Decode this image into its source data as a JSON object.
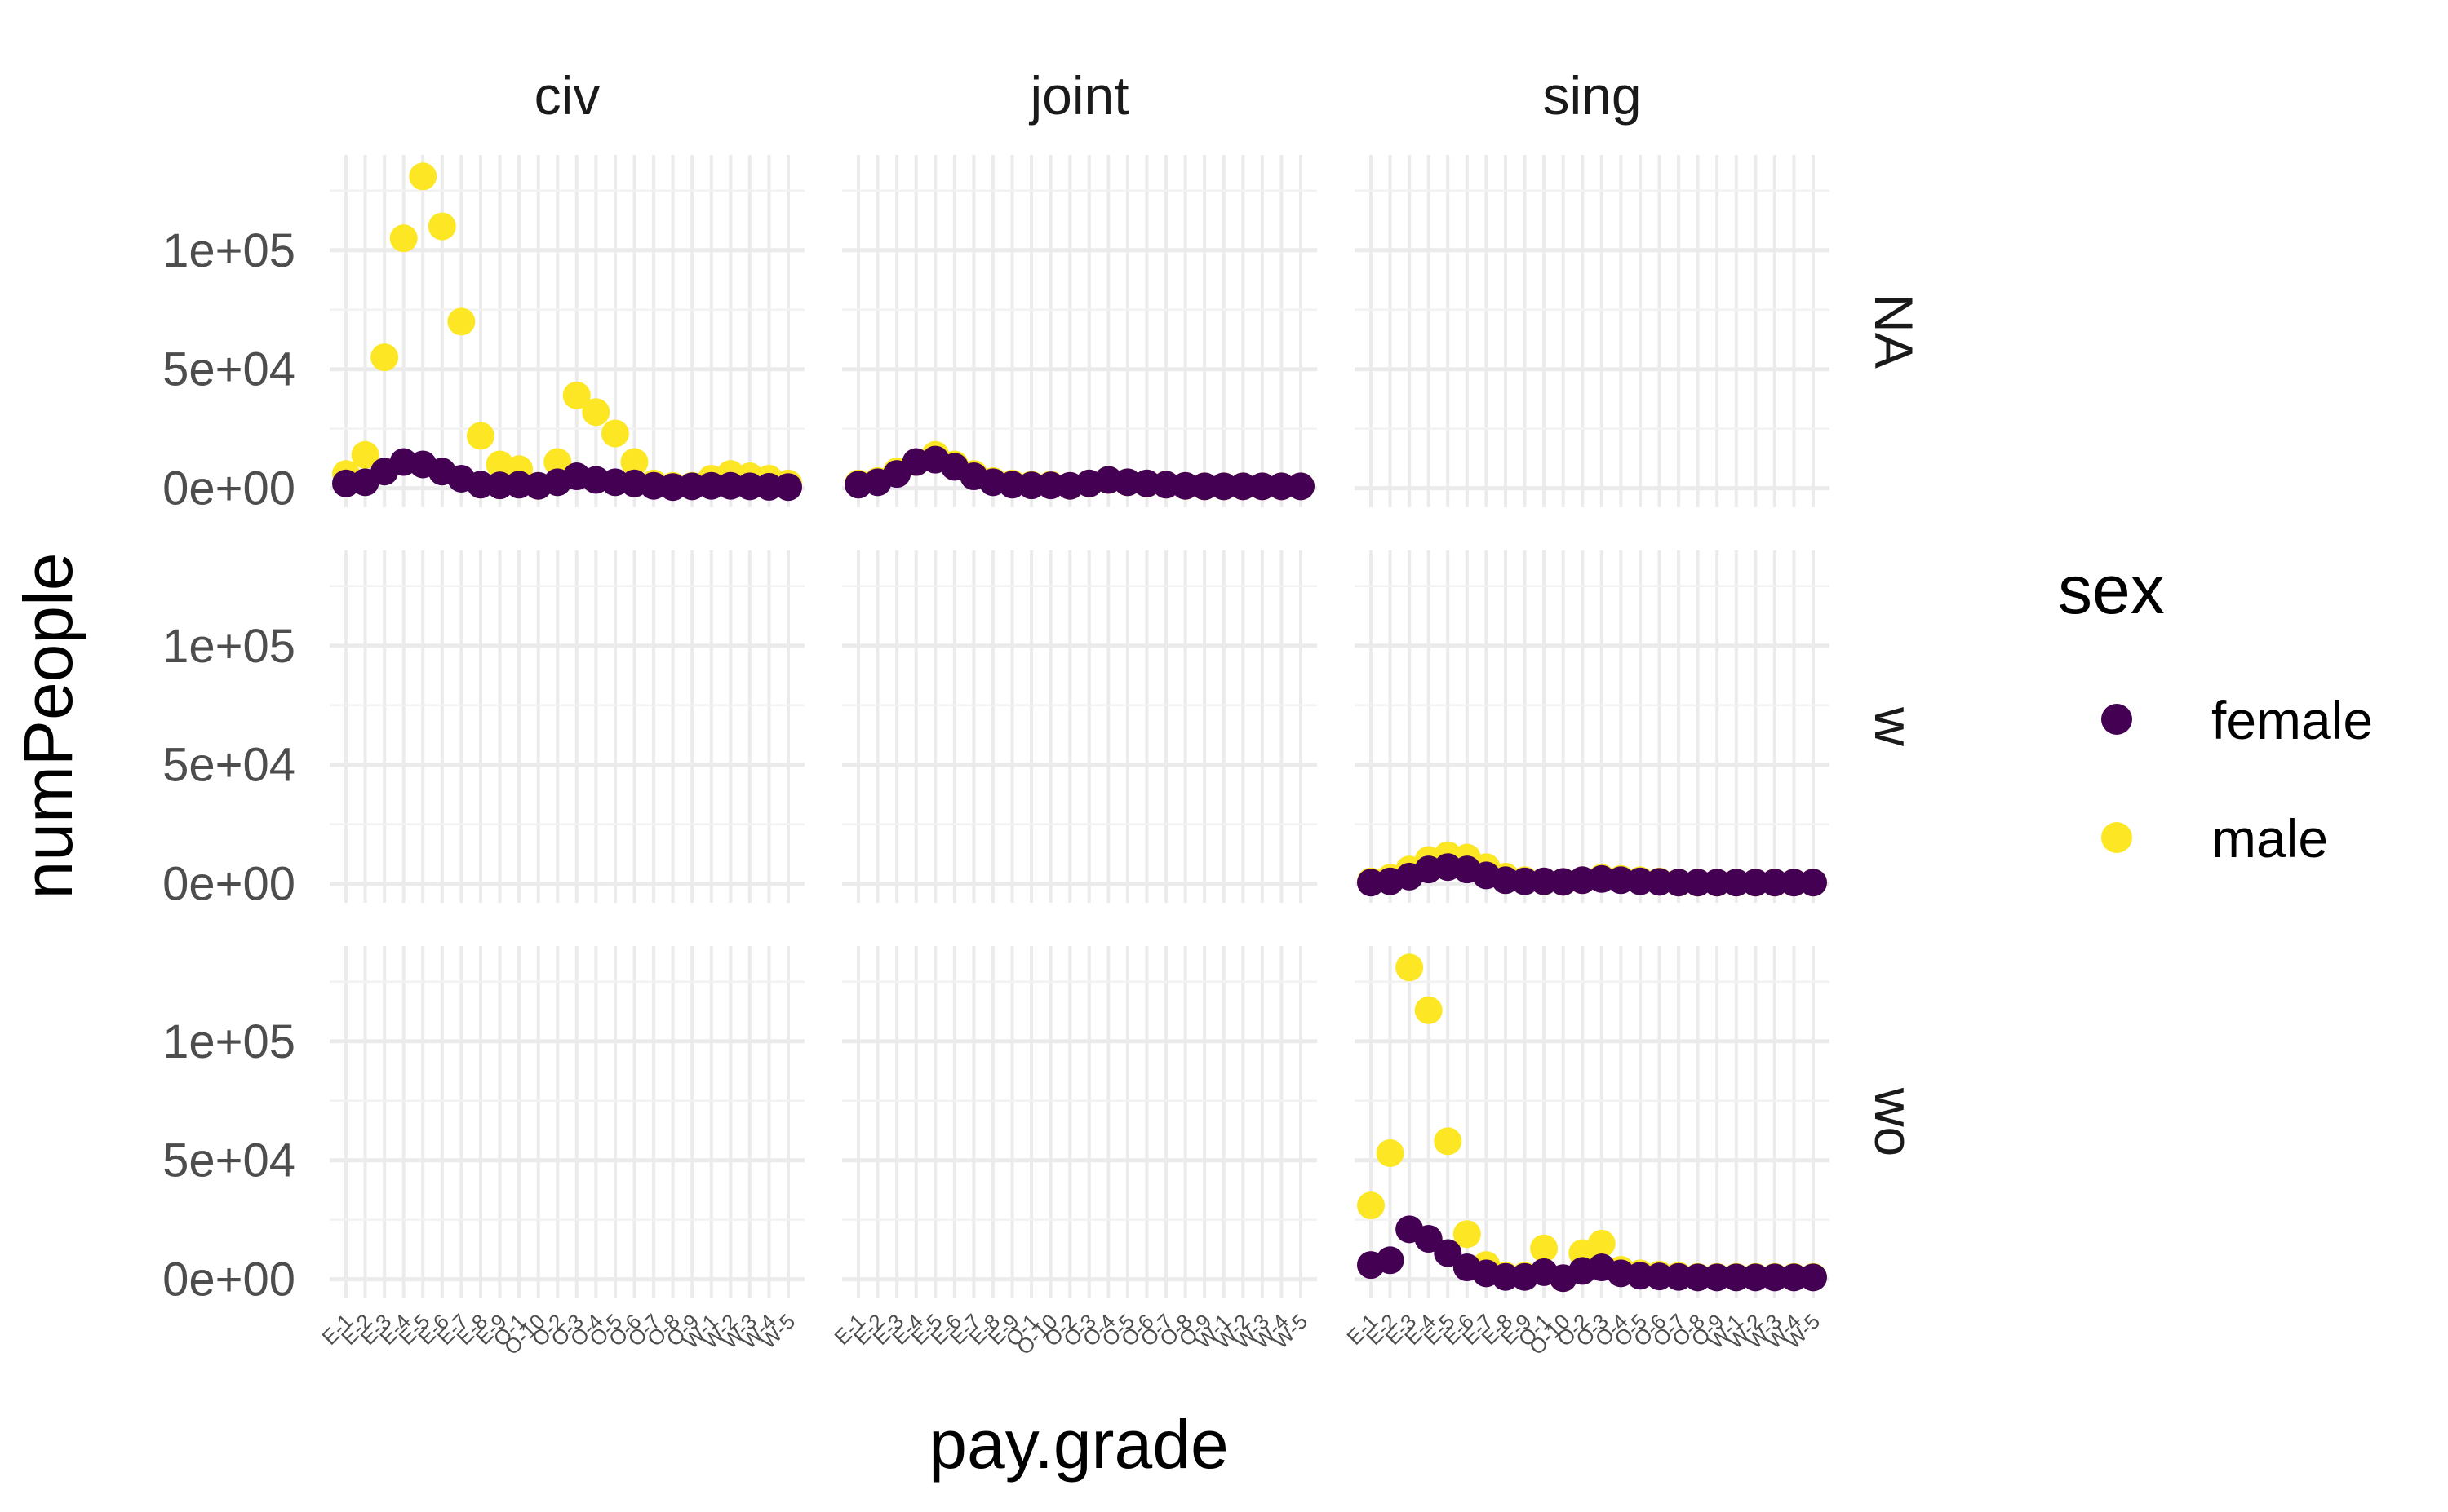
{
  "chart_data": {
    "type": "scatter",
    "x_label": "pay.grade",
    "y_label": "numPeople",
    "y_range": [
      -8000,
      140000
    ],
    "y_ticks": [
      {
        "value": 0,
        "label": "0e+00"
      },
      {
        "value": 50000,
        "label": "5e+04"
      },
      {
        "value": 100000,
        "label": "1e+05"
      }
    ],
    "grid": true,
    "legend": {
      "title": "sex",
      "position": "right",
      "entries": [
        {
          "name": "female",
          "color": "#440154"
        },
        {
          "name": "male",
          "color": "#FDE725"
        }
      ]
    },
    "columns": [
      "civ",
      "joint",
      "sing"
    ],
    "rows": [
      "NA",
      "w",
      "wo"
    ],
    "x_categories": [
      "E-1",
      "E-2",
      "E-3",
      "E-4",
      "E-5",
      "E-6",
      "E-7",
      "E-8",
      "E-9",
      "O-1",
      "O-10",
      "O-2",
      "O-3",
      "O-4",
      "O-5",
      "O-6",
      "O-7",
      "O-8",
      "O-9",
      "W-1",
      "W-2",
      "W-3",
      "W-4",
      "W-5"
    ],
    "x_tick_labels": [
      "E-1",
      "E-2",
      "E-3",
      "E-4",
      "E-5",
      "E-6",
      "E-7",
      "E-8",
      "E-9",
      "O-1",
      "O-10",
      "O-2",
      "O-3",
      "O-4",
      "O-5",
      "O-6",
      "O-7",
      "O-8",
      "O-9",
      "W-1",
      "W-2",
      "W-3",
      "W-4",
      "W-5"
    ],
    "panels": [
      {
        "column": "civ",
        "row": "NA",
        "female": [
          2000,
          2500,
          7000,
          11000,
          10000,
          7000,
          4000,
          1500,
          1200,
          1500,
          1000,
          2500,
          5000,
          3500,
          2500,
          2000,
          1000,
          500,
          800,
          1000,
          1000,
          800,
          600,
          500
        ],
        "male": [
          6000,
          14000,
          55000,
          105000,
          131000,
          110000,
          70000,
          22000,
          10000,
          8000,
          1000,
          11000,
          39000,
          32000,
          23000,
          11000,
          2000,
          1000,
          1000,
          4000,
          6000,
          5000,
          4000,
          2000
        ]
      },
      {
        "column": "joint",
        "row": "NA",
        "female": [
          1500,
          2500,
          6000,
          11000,
          12000,
          9000,
          5000,
          2500,
          1500,
          1200,
          1200,
          1000,
          2000,
          3500,
          2500,
          2000,
          1500,
          1000,
          800,
          800,
          800,
          800,
          800,
          800
        ],
        "male": [
          2000,
          3000,
          7000,
          11000,
          14000,
          10000,
          6000,
          3000,
          2000,
          1500,
          1500,
          1000,
          2000,
          3500,
          2500,
          2000,
          1500,
          1000,
          800,
          800,
          800,
          800,
          800,
          800
        ]
      },
      {
        "column": "sing",
        "row": "NA",
        "female": [],
        "male": []
      },
      {
        "column": "civ",
        "row": "w",
        "female": [],
        "male": []
      },
      {
        "column": "joint",
        "row": "w",
        "female": [],
        "male": []
      },
      {
        "column": "sing",
        "row": "w",
        "female": [
          500,
          1000,
          3000,
          6000,
          7000,
          6000,
          3500,
          1500,
          1000,
          1000,
          800,
          1500,
          2000,
          1500,
          1000,
          800,
          500,
          500,
          500,
          500,
          500,
          500,
          500,
          500
        ],
        "male": [
          1000,
          2500,
          6000,
          10000,
          12000,
          11000,
          7000,
          3000,
          1500,
          1000,
          800,
          1500,
          2500,
          2000,
          1500,
          1000,
          500,
          500,
          500,
          500,
          500,
          500,
          500,
          500
        ]
      },
      {
        "column": "civ",
        "row": "wo",
        "female": [],
        "male": []
      },
      {
        "column": "joint",
        "row": "wo",
        "female": [],
        "male": []
      },
      {
        "column": "sing",
        "row": "wo",
        "female": [
          6000,
          8000,
          21000,
          17000,
          11000,
          5000,
          2500,
          1000,
          1000,
          3000,
          500,
          3500,
          5000,
          2500,
          1500,
          1200,
          1000,
          800,
          800,
          800,
          800,
          800,
          800,
          800
        ],
        "male": [
          31000,
          53000,
          131000,
          113000,
          58000,
          19000,
          6000,
          1500,
          1500,
          13000,
          500,
          11000,
          15000,
          4000,
          2500,
          2000,
          1500,
          1000,
          1000,
          1000,
          1000,
          1000,
          1000,
          1000
        ]
      }
    ]
  }
}
